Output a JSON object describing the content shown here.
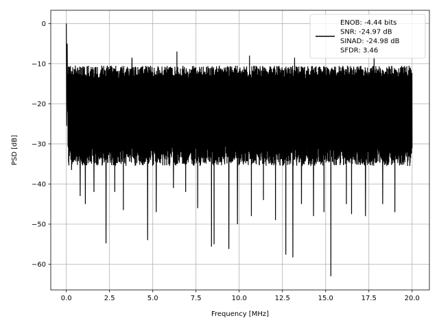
{
  "chart_data": {
    "type": "line",
    "xlabel": "Frequency [MHz]",
    "ylabel": "PSD [dB]",
    "xlim": [
      -0.9,
      21.0
    ],
    "ylim": [
      -66.4,
      3.3
    ],
    "xticks": [
      0.0,
      2.5,
      5.0,
      7.5,
      10.0,
      12.5,
      15.0,
      17.5,
      20.0
    ],
    "xtick_labels": [
      "0.0",
      "2.5",
      "5.0",
      "7.5",
      "10.0",
      "12.5",
      "15.0",
      "17.5",
      "20.0"
    ],
    "yticks": [
      0,
      -10,
      -20,
      -30,
      -40,
      -50,
      -60
    ],
    "ytick_labels": [
      "0",
      "−10",
      "−20",
      "−30",
      "−40",
      "−50",
      "−60"
    ],
    "grid": true,
    "legend_position": "top-right",
    "line_color": "#000000",
    "series": [
      {
        "legend_lines": [
          "ENOB: -4.44 bits",
          "SNR: -24.97 dB",
          "SINAD: -24.98 dB",
          "SFDR: 3.46"
        ],
        "noise_floor": {
          "x_start": 0.0,
          "x_end": 20.0,
          "upper_envelope_db": -10.5,
          "typical_low_db": -33.0,
          "deepest_db": -63.0
        },
        "peaks": [
          {
            "x": 0.0,
            "y": 0.0
          },
          {
            "x": 0.02,
            "y": -25.5
          },
          {
            "x": 0.05,
            "y": -5.0
          },
          {
            "x": 0.08,
            "y": -22.0
          }
        ],
        "notable_dips": [
          {
            "x": 0.3,
            "y": -36.5
          },
          {
            "x": 0.8,
            "y": -43.0
          },
          {
            "x": 1.1,
            "y": -45.0
          },
          {
            "x": 1.6,
            "y": -42.0
          },
          {
            "x": 2.3,
            "y": -54.8
          },
          {
            "x": 2.8,
            "y": -42.0
          },
          {
            "x": 3.3,
            "y": -46.5
          },
          {
            "x": 3.8,
            "y": -46.0
          },
          {
            "x": 4.7,
            "y": -54.0
          },
          {
            "x": 5.2,
            "y": -47.0
          },
          {
            "x": 6.2,
            "y": -41.0
          },
          {
            "x": 6.9,
            "y": -42.0
          },
          {
            "x": 7.6,
            "y": -46.0
          },
          {
            "x": 8.4,
            "y": -55.6
          },
          {
            "x": 8.55,
            "y": -55.0
          },
          {
            "x": 9.4,
            "y": -56.2
          },
          {
            "x": 9.9,
            "y": -50.0
          },
          {
            "x": 10.7,
            "y": -48.0
          },
          {
            "x": 11.4,
            "y": -44.0
          },
          {
            "x": 12.1,
            "y": -49.0
          },
          {
            "x": 12.7,
            "y": -57.6
          },
          {
            "x": 13.1,
            "y": -58.3
          },
          {
            "x": 13.6,
            "y": -45.0
          },
          {
            "x": 14.3,
            "y": -48.0
          },
          {
            "x": 14.9,
            "y": -47.0
          },
          {
            "x": 15.3,
            "y": -63.0
          },
          {
            "x": 16.2,
            "y": -45.0
          },
          {
            "x": 16.5,
            "y": -47.5
          },
          {
            "x": 17.3,
            "y": -48.0
          },
          {
            "x": 18.3,
            "y": -45.0
          },
          {
            "x": 19.0,
            "y": -47.0
          },
          {
            "x": 19.9,
            "y": -39.0
          }
        ],
        "notable_tops": [
          {
            "x": 0.2,
            "y": -11.0
          },
          {
            "x": 3.8,
            "y": -8.5
          },
          {
            "x": 6.4,
            "y": -7.0
          },
          {
            "x": 10.6,
            "y": -8.0
          },
          {
            "x": 13.2,
            "y": -8.5
          },
          {
            "x": 17.8,
            "y": -8.3
          },
          {
            "x": 19.9,
            "y": -11.0
          }
        ]
      }
    ]
  }
}
